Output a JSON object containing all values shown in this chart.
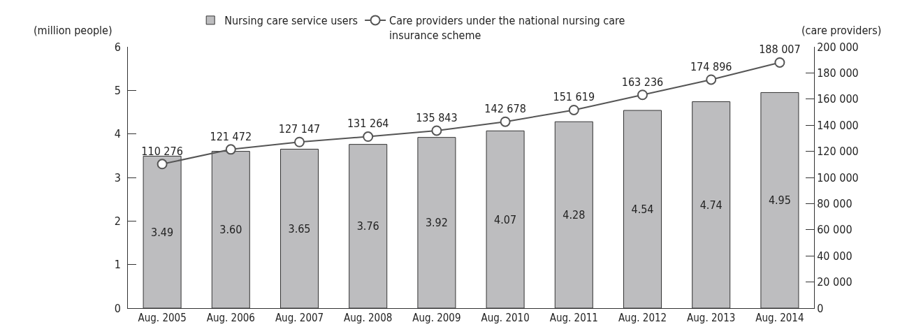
{
  "chart_data": {
    "type": "bar",
    "ylabel": "(million people)",
    "y2label": "(care providers)",
    "categories": [
      "Aug. 2005",
      "Aug. 2006",
      "Aug. 2007",
      "Aug. 2008",
      "Aug. 2009",
      "Aug. 2010",
      "Aug. 2011",
      "Aug. 2012",
      "Aug. 2013",
      "Aug. 2014"
    ],
    "series": [
      {
        "name": "Nursing care service users",
        "color": "#bdbdbf",
        "values": [
          3.49,
          3.6,
          3.65,
          3.76,
          3.92,
          4.07,
          4.28,
          4.54,
          4.74,
          4.95
        ],
        "value_labels": [
          "3.49",
          "3.60",
          "3.65",
          "3.76",
          "3.92",
          "4.07",
          "4.28",
          "4.54",
          "4.74",
          "4.95"
        ]
      },
      {
        "name": "Care providers under the national nursing care insurance scheme",
        "type": "line",
        "axis": "y2",
        "color": "#555555",
        "marker": "circle",
        "values": [
          110276,
          121472,
          127147,
          131264,
          135843,
          142678,
          151619,
          163236,
          174896,
          188007
        ],
        "value_labels": [
          "110 276",
          "121 472",
          "127 147",
          "131 264",
          "135 843",
          "142 678",
          "151 619",
          "163 236",
          "174 896",
          "188 007"
        ]
      }
    ],
    "ylim": [
      0,
      6
    ],
    "yticks": [
      0,
      1,
      2,
      3,
      4,
      5,
      6
    ],
    "y2lim": [
      0,
      200000
    ],
    "y2ticks": [
      0,
      {
        "value": 20000,
        "label": "20 000"
      },
      {
        "value": 40000,
        "label": "40 000"
      },
      {
        "value": 60000,
        "label": "60 000"
      },
      {
        "value": 80000,
        "label": "80 000"
      },
      {
        "value": 100000,
        "label": "100 000"
      },
      {
        "value": 120000,
        "label": "120 000"
      },
      {
        "value": 140000,
        "label": "140 000"
      },
      {
        "value": 160000,
        "label": "160 000"
      },
      {
        "value": 180000,
        "label": "180 000"
      },
      {
        "value": 200000,
        "label": "200 000"
      }
    ],
    "grid": false,
    "legend": "top"
  }
}
